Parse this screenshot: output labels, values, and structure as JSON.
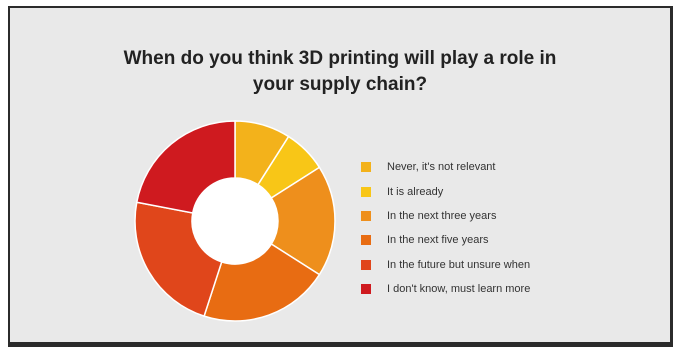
{
  "chart_data": {
    "type": "pie",
    "style": "donut",
    "title_lines": [
      "When do you think 3D printing will play a role in",
      "your supply chain?"
    ],
    "legend_position": "right",
    "series": [
      {
        "name": "Never, it's not relevant",
        "value": 9,
        "color": "#f3b21b"
      },
      {
        "name": "It is already",
        "value": 7,
        "color": "#f8c617"
      },
      {
        "name": "In the next three years",
        "value": 18,
        "color": "#ee8f1c"
      },
      {
        "name": "In the next five years",
        "value": 21,
        "color": "#e86c12"
      },
      {
        "name": "In the future but unsure when",
        "value": 23,
        "color": "#e0461b"
      },
      {
        "name": "I don't know, must learn more",
        "value": 22,
        "color": "#cf1a1f"
      }
    ]
  }
}
